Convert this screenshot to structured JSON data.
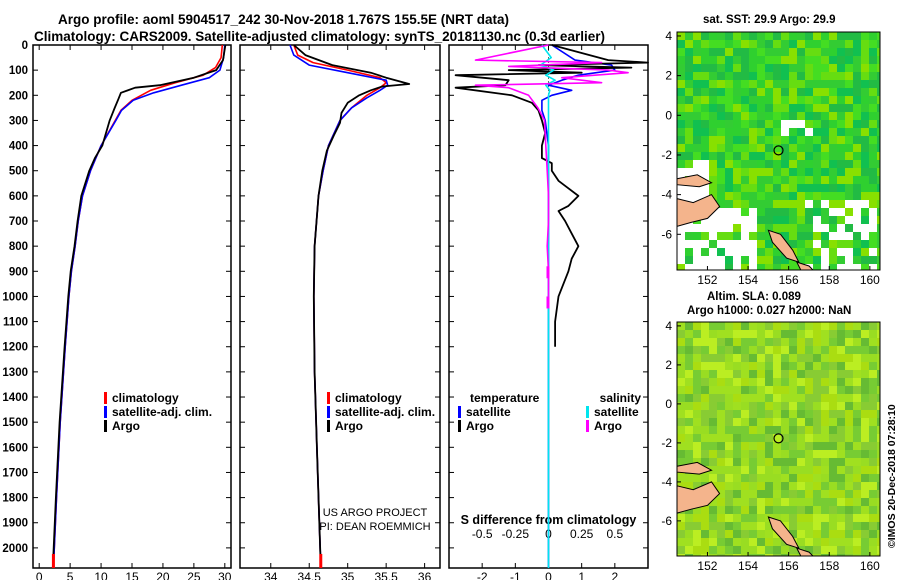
{
  "title": {
    "line1": "Argo profile: aoml 5904517_242 30-Nov-2018 1.767S 155.5E (NRT data)",
    "line2": "Climatology: CARS2009. Satellite-adjusted climatology: synTS_20181130.nc (0.3d earlier)"
  },
  "colors": {
    "climatology": "#ff0000",
    "satellite": "#0000ff",
    "argo": "#000000",
    "salinity_satellite": "#00e5ee",
    "salinity_argo": "#ff00ff"
  },
  "chart_data": [
    {
      "type": "line",
      "name": "temperature-profile",
      "xlabel": "temperature (deg C)",
      "xlim": [
        -1,
        31
      ],
      "xticks": [
        "0",
        "5",
        "10",
        "15",
        "20",
        "25",
        "30"
      ],
      "ylim": [
        2080,
        0
      ],
      "yticks": [
        "0",
        "100",
        "200",
        "300",
        "400",
        "500",
        "600",
        "700",
        "800",
        "900",
        "1000",
        "1100",
        "1200",
        "1300",
        "1400",
        "1500",
        "1600",
        "1700",
        "1800",
        "1900",
        "2000"
      ],
      "legend": [
        "climatology",
        "satellite-adj. clim.",
        "Argo"
      ],
      "series": [
        {
          "name": "climatology",
          "depth": [
            0,
            50,
            90,
            120,
            150,
            180,
            220,
            260,
            300,
            400,
            500,
            600,
            700,
            800,
            900,
            1000,
            1200,
            1500,
            1800,
            2080
          ],
          "values": [
            29.6,
            29.4,
            28.5,
            26.5,
            22.0,
            18.0,
            15.0,
            13.2,
            12.3,
            10.0,
            8.3,
            7.0,
            6.3,
            5.8,
            5.2,
            4.8,
            4.2,
            3.4,
            2.8,
            2.3
          ]
        },
        {
          "name": "satellite-adj. clim.",
          "depth": [
            0,
            50,
            100,
            130,
            160,
            190,
            220,
            260,
            300,
            400,
            500,
            600,
            700,
            800,
            900,
            1000,
            1200,
            1500,
            1800,
            2080
          ],
          "values": [
            30.0,
            29.8,
            29.2,
            27.5,
            23.0,
            18.5,
            15.2,
            13.3,
            12.4,
            10.0,
            8.3,
            7.0,
            6.3,
            5.8,
            5.2,
            4.8,
            4.2,
            3.4,
            2.8,
            2.3
          ]
        },
        {
          "name": "Argo",
          "depth": [
            0,
            60,
            100,
            130,
            160,
            170,
            190,
            215,
            250,
            300,
            350,
            400,
            450,
            500,
            600,
            700,
            800,
            900,
            1000,
            1200,
            1500,
            1800,
            2080
          ],
          "values": [
            30.1,
            29.7,
            28.6,
            25.0,
            19.5,
            15.5,
            13.2,
            12.8,
            12.2,
            11.4,
            10.8,
            10.2,
            9.0,
            8.1,
            6.8,
            6.2,
            5.7,
            5.1,
            4.7,
            4.1,
            3.3,
            2.7,
            2.2
          ]
        }
      ]
    },
    {
      "type": "line",
      "name": "salinity-profile",
      "xlabel": "salinity",
      "xlim": [
        33.6,
        36.2
      ],
      "xticks": [
        "34",
        "34.5",
        "35",
        "35.5",
        "36"
      ],
      "ylim": [
        2080,
        0
      ],
      "legend": [
        "climatology",
        "satellite-adj. clim.",
        "Argo"
      ],
      "credits": [
        "US ARGO PROJECT",
        "PI: DEAN ROEMMICH"
      ],
      "series": [
        {
          "name": "climatology",
          "depth": [
            0,
            40,
            70,
            100,
            130,
            150,
            170,
            200,
            250,
            300,
            400,
            500,
            600,
            800,
            1000,
            1300,
            1600,
            2080
          ],
          "values": [
            34.3,
            34.35,
            34.55,
            35.0,
            35.42,
            35.5,
            35.42,
            35.25,
            35.05,
            34.9,
            34.75,
            34.68,
            34.62,
            34.57,
            34.56,
            34.57,
            34.6,
            34.65
          ]
        },
        {
          "name": "satellite-adj. clim.",
          "depth": [
            0,
            40,
            80,
            110,
            140,
            160,
            180,
            210,
            250,
            300,
            400,
            500,
            600,
            800,
            1000,
            1300,
            1600,
            2080
          ],
          "values": [
            34.25,
            34.3,
            34.5,
            35.0,
            35.5,
            35.52,
            35.42,
            35.25,
            35.05,
            34.9,
            34.75,
            34.68,
            34.62,
            34.57,
            34.56,
            34.57,
            34.6,
            34.65
          ]
        },
        {
          "name": "Argo",
          "depth": [
            0,
            40,
            80,
            110,
            130,
            145,
            155,
            165,
            180,
            200,
            230,
            270,
            310,
            360,
            420,
            500,
            600,
            800,
            1000,
            1300,
            1600,
            2080
          ],
          "values": [
            34.3,
            34.45,
            34.8,
            35.3,
            35.5,
            35.68,
            35.8,
            35.45,
            35.3,
            35.15,
            35.0,
            34.92,
            34.9,
            34.82,
            34.73,
            34.67,
            34.62,
            34.57,
            34.56,
            34.57,
            34.6,
            34.65
          ]
        }
      ]
    },
    {
      "type": "line",
      "name": "difference-profile",
      "xlabel": "T difference from climatology",
      "xlabel_top": "S difference from climatology",
      "xlim": [
        -3,
        3
      ],
      "xticks": [
        "-2",
        "-1",
        "0",
        "1",
        "2"
      ],
      "sticks": [
        "-0.5",
        "-0.25",
        "0",
        "0.25",
        "0.5"
      ],
      "ylim": [
        2080,
        0
      ],
      "legend_left_title": "temperature",
      "legend_right_title": "salinity",
      "legend_left": [
        "satellite",
        "Argo"
      ],
      "legend_right": [
        "satellite",
        "Argo"
      ],
      "series": [
        {
          "name": "T satellite",
          "depth": [
            0,
            60,
            80,
            100,
            120,
            140,
            160,
            180,
            200,
            220,
            260,
            300,
            400,
            500,
            600,
            800,
            1000,
            1200,
            1500,
            2080
          ],
          "values": [
            0.1,
            0.8,
            1.9,
            2.0,
            0.9,
            0.4,
            0.0,
            0.7,
            0.1,
            -0.2,
            -0.2,
            -0.1,
            0.0,
            0.0,
            0.0,
            0.0,
            0.0,
            0.0,
            0.0,
            0.0
          ]
        },
        {
          "name": "T Argo",
          "depth": [
            0,
            60,
            70,
            80,
            90,
            100,
            110,
            120,
            140,
            160,
            170,
            200,
            230,
            260,
            300,
            350,
            400,
            450,
            470,
            500,
            540,
            560,
            600,
            640,
            660,
            700,
            750,
            800,
            850,
            900,
            1000,
            1100,
            1200
          ],
          "values": [
            0.1,
            1.8,
            3.0,
            -0.3,
            2.5,
            -1.2,
            1.0,
            -2.8,
            -1.2,
            -1.3,
            -2.8,
            -1.1,
            -0.5,
            -0.3,
            -0.2,
            -0.1,
            -0.2,
            -0.2,
            0.1,
            0.1,
            0.3,
            0.5,
            0.9,
            0.6,
            0.3,
            0.5,
            0.7,
            0.9,
            0.7,
            0.6,
            0.3,
            0.2,
            0.2
          ]
        },
        {
          "name": "S satellite",
          "depth": [
            0,
            50,
            80,
            100,
            120,
            140,
            160,
            180,
            200,
            260,
            300,
            400,
            500,
            600,
            800,
            1000,
            1500,
            2080
          ],
          "values": [
            -0.05,
            0.02,
            -0.06,
            0.04,
            -0.02,
            0.05,
            -0.02,
            0.01,
            0.0,
            0.0,
            0.0,
            0.0,
            0.0,
            0.0,
            0.0,
            0.0,
            0.0,
            0.0
          ]
        },
        {
          "name": "S Argo",
          "depth": [
            0,
            60,
            70,
            85,
            100,
            110,
            130,
            150,
            160,
            170,
            200,
            250,
            300,
            400,
            500,
            600,
            700,
            800,
            900,
            1000
          ],
          "values": [
            0.0,
            -0.55,
            0.4,
            -0.3,
            0.45,
            0.6,
            0.1,
            0.4,
            -0.55,
            -0.3,
            -0.15,
            -0.08,
            -0.03,
            -0.02,
            -0.01,
            0.0,
            0.0,
            -0.01,
            0.0,
            0.0
          ]
        }
      ]
    },
    {
      "type": "heatmap",
      "name": "sst-map",
      "title": "sat. SST: 29.9 Argo: 29.9",
      "xticks": [
        "152",
        "154",
        "156",
        "158",
        "160"
      ],
      "yticks": [
        "4",
        "2",
        "0",
        "-2",
        "-4",
        "-6"
      ],
      "xlim": [
        150.5,
        160.5
      ],
      "ylim": [
        -7.8,
        4.2
      ],
      "argo_position": [
        155.5,
        -1.767
      ]
    },
    {
      "type": "heatmap",
      "name": "sla-map",
      "title": "Altim. SLA: 0.089",
      "title2": "Argo h1000: 0.027 h2000: NaN",
      "xticks": [
        "152",
        "154",
        "156",
        "158",
        "160"
      ],
      "yticks": [
        "4",
        "2",
        "0",
        "-2",
        "-4",
        "-6"
      ],
      "xlim": [
        150.5,
        160.5
      ],
      "ylim": [
        -7.8,
        4.2
      ],
      "argo_position": [
        155.5,
        -1.767
      ]
    }
  ],
  "stamp": "©IMOS 20-Dec-2018 07:28:10"
}
